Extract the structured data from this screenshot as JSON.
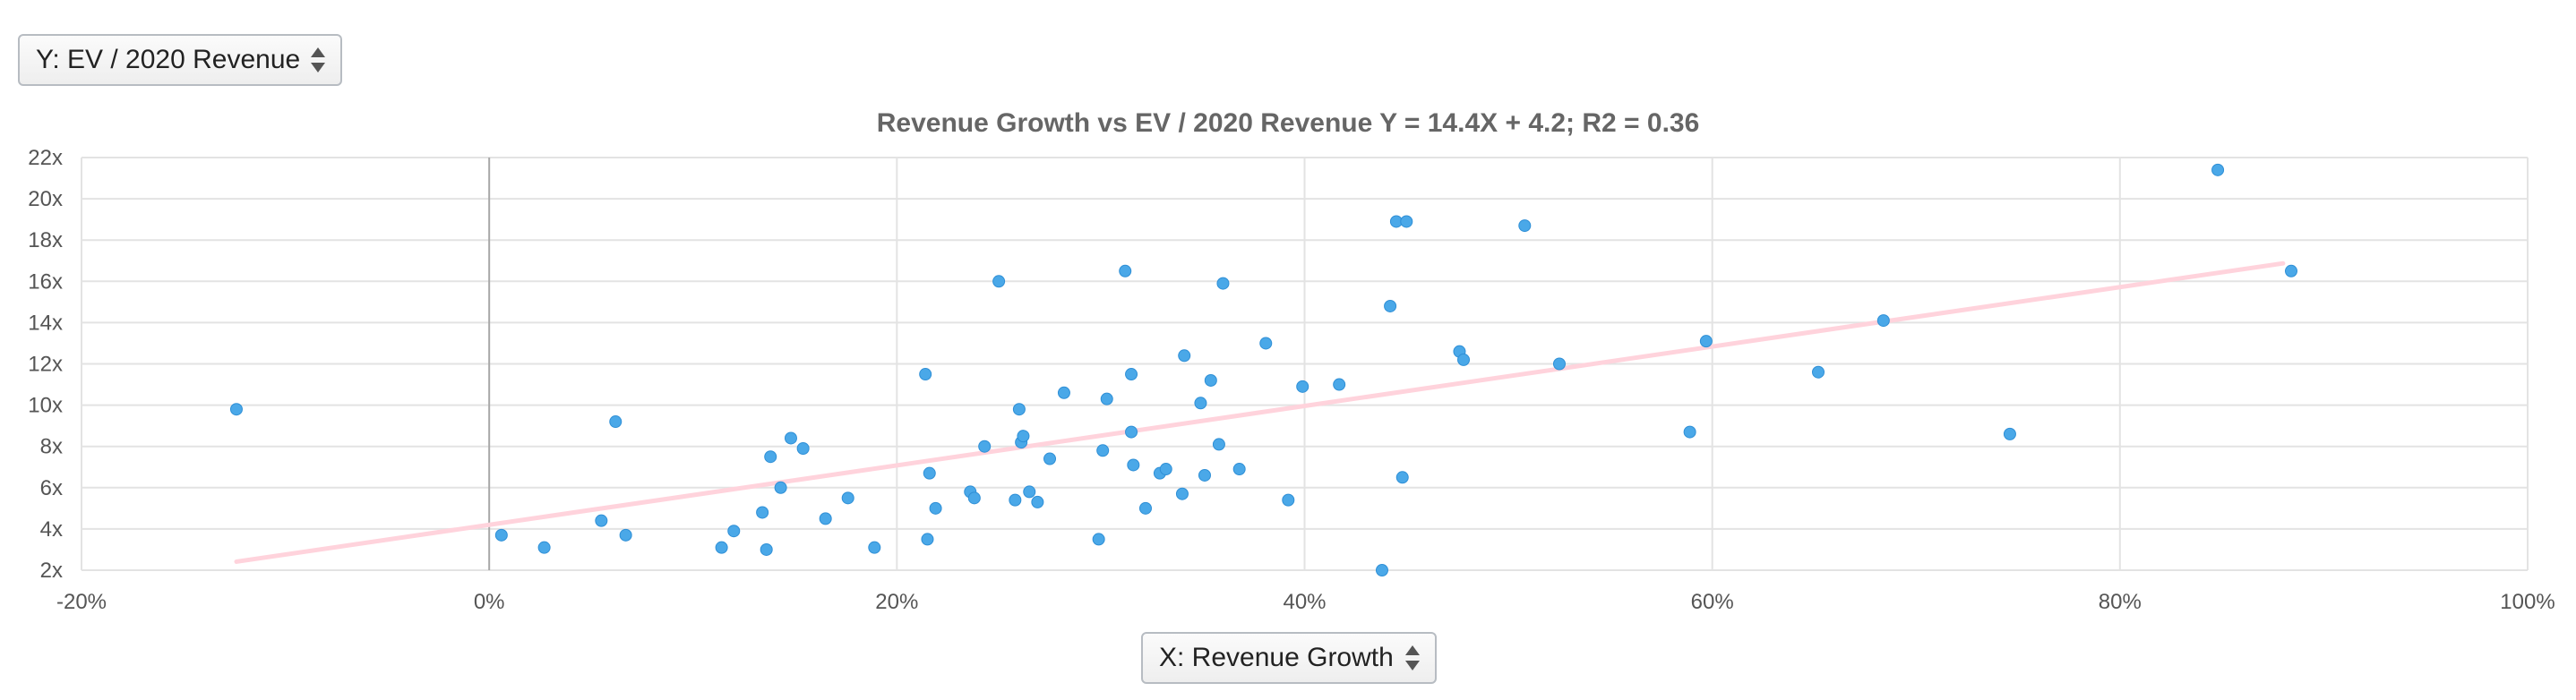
{
  "controls": {
    "y_select_label": "Y: EV / 2020 Revenue",
    "x_select_label": "X: Revenue Growth"
  },
  "colors": {
    "point": "#4aa8e8",
    "point_stroke": "#2f8fd6",
    "trendline": "#ffd3dc",
    "grid": "#e3e3e3",
    "zero_line": "#a8a8a8",
    "title": "#666666"
  },
  "chart_data": {
    "type": "scatter",
    "title": "Revenue Growth vs EV / 2020 Revenue Y = 14.4X + 4.2; R2 = 0.36",
    "xlabel": "Revenue Growth",
    "ylabel": "EV / 2020 Revenue",
    "xlim": [
      -20,
      100
    ],
    "ylim": [
      2,
      22
    ],
    "x_ticks": [
      -20,
      0,
      20,
      40,
      60,
      80,
      100
    ],
    "x_tick_labels": [
      "-20%",
      "0%",
      "20%",
      "40%",
      "60%",
      "80%",
      "100%"
    ],
    "y_ticks": [
      2,
      4,
      6,
      8,
      10,
      12,
      14,
      16,
      18,
      20,
      22
    ],
    "y_tick_labels": [
      "2x",
      "4x",
      "6x",
      "8x",
      "10x",
      "12x",
      "14x",
      "16x",
      "18x",
      "20x",
      "22x"
    ],
    "grid": true,
    "trendline": {
      "slope": 14.4,
      "intercept": 4.2,
      "x_range": [
        -12.4,
        88
      ]
    },
    "points": [
      {
        "x": -12.4,
        "y": 9.8
      },
      {
        "x": 0.6,
        "y": 3.7
      },
      {
        "x": 2.7,
        "y": 3.1
      },
      {
        "x": 5.5,
        "y": 4.4
      },
      {
        "x": 6.2,
        "y": 9.2
      },
      {
        "x": 6.7,
        "y": 3.7
      },
      {
        "x": 11.4,
        "y": 3.1
      },
      {
        "x": 12.0,
        "y": 3.9
      },
      {
        "x": 13.4,
        "y": 4.8
      },
      {
        "x": 13.6,
        "y": 3.0
      },
      {
        "x": 13.8,
        "y": 7.5
      },
      {
        "x": 14.3,
        "y": 6.0
      },
      {
        "x": 14.8,
        "y": 8.4
      },
      {
        "x": 15.4,
        "y": 7.9
      },
      {
        "x": 16.5,
        "y": 4.5
      },
      {
        "x": 17.6,
        "y": 5.5
      },
      {
        "x": 18.9,
        "y": 3.1
      },
      {
        "x": 21.4,
        "y": 11.5
      },
      {
        "x": 21.5,
        "y": 3.5
      },
      {
        "x": 21.6,
        "y": 6.7
      },
      {
        "x": 21.9,
        "y": 5.0
      },
      {
        "x": 23.6,
        "y": 5.8
      },
      {
        "x": 23.8,
        "y": 5.5
      },
      {
        "x": 24.3,
        "y": 8.0
      },
      {
        "x": 25.0,
        "y": 16.0
      },
      {
        "x": 25.8,
        "y": 5.4
      },
      {
        "x": 26.0,
        "y": 9.8
      },
      {
        "x": 26.1,
        "y": 8.2
      },
      {
        "x": 26.2,
        "y": 8.5
      },
      {
        "x": 26.5,
        "y": 5.8
      },
      {
        "x": 26.9,
        "y": 5.3
      },
      {
        "x": 27.5,
        "y": 7.4
      },
      {
        "x": 28.2,
        "y": 10.6
      },
      {
        "x": 29.9,
        "y": 3.5
      },
      {
        "x": 30.1,
        "y": 7.8
      },
      {
        "x": 30.3,
        "y": 10.3
      },
      {
        "x": 31.2,
        "y": 16.5
      },
      {
        "x": 31.5,
        "y": 8.7
      },
      {
        "x": 31.5,
        "y": 11.5
      },
      {
        "x": 31.6,
        "y": 7.1
      },
      {
        "x": 32.2,
        "y": 5.0
      },
      {
        "x": 32.9,
        "y": 6.7
      },
      {
        "x": 33.2,
        "y": 6.9
      },
      {
        "x": 34.0,
        "y": 5.7
      },
      {
        "x": 34.1,
        "y": 12.4
      },
      {
        "x": 34.9,
        "y": 10.1
      },
      {
        "x": 35.1,
        "y": 6.6
      },
      {
        "x": 35.4,
        "y": 11.2
      },
      {
        "x": 35.8,
        "y": 8.1
      },
      {
        "x": 36.0,
        "y": 15.9
      },
      {
        "x": 36.8,
        "y": 6.9
      },
      {
        "x": 38.1,
        "y": 13.0
      },
      {
        "x": 39.2,
        "y": 5.4
      },
      {
        "x": 39.9,
        "y": 10.9
      },
      {
        "x": 41.7,
        "y": 11.0
      },
      {
        "x": 43.8,
        "y": 2.0
      },
      {
        "x": 44.2,
        "y": 14.8
      },
      {
        "x": 44.5,
        "y": 18.9
      },
      {
        "x": 44.8,
        "y": 6.5
      },
      {
        "x": 45.0,
        "y": 18.9
      },
      {
        "x": 47.6,
        "y": 12.6
      },
      {
        "x": 47.8,
        "y": 12.2
      },
      {
        "x": 50.8,
        "y": 18.7
      },
      {
        "x": 52.5,
        "y": 12.0
      },
      {
        "x": 58.9,
        "y": 8.7
      },
      {
        "x": 59.7,
        "y": 13.1
      },
      {
        "x": 65.2,
        "y": 11.6
      },
      {
        "x": 68.4,
        "y": 14.1
      },
      {
        "x": 74.6,
        "y": 8.6
      },
      {
        "x": 84.8,
        "y": 21.4
      },
      {
        "x": 88.4,
        "y": 16.5
      }
    ]
  }
}
